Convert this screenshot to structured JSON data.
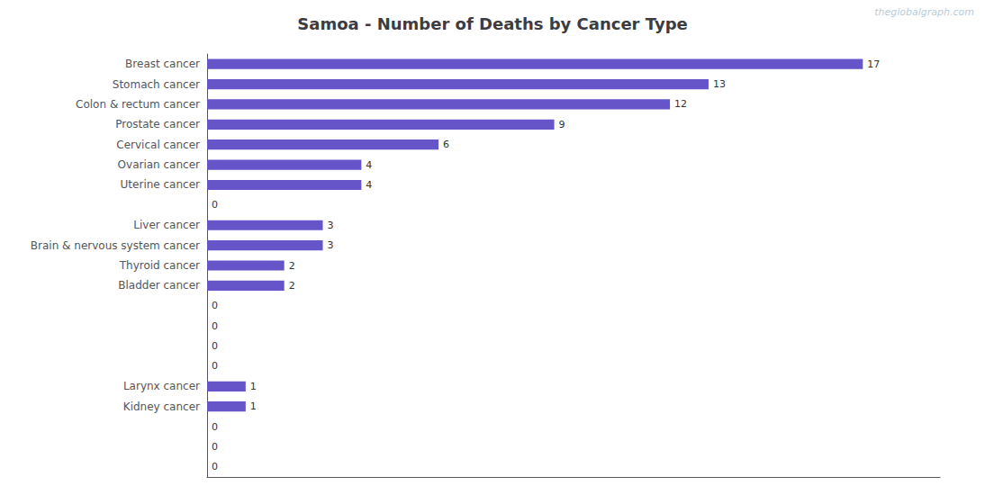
{
  "chart_data": {
    "type": "bar",
    "orientation": "horizontal",
    "title": "Samoa - Number of Deaths by Cancer Type",
    "annotations": [
      "theglobalgraph.com"
    ],
    "categories": [
      "Breast cancer",
      "Stomach cancer",
      "Colon & rectum cancer",
      "Prostate cancer",
      "Cervical cancer",
      "Ovarian cancer",
      "Uterine cancer",
      null,
      "Liver cancer",
      "Brain & nervous system cancer",
      "Thyroid cancer",
      "Bladder cancer",
      null,
      null,
      null,
      null,
      "Larynx cancer",
      "Kidney cancer",
      null,
      null,
      null
    ],
    "values": [
      17,
      13,
      12,
      9,
      6,
      4,
      4,
      0,
      3,
      3,
      2,
      2,
      0,
      0,
      0,
      0,
      1,
      1,
      0,
      0,
      0
    ],
    "color": "#6655c8",
    "xlim": [
      0,
      19
    ],
    "tick_labels": "y",
    "data_labels": true,
    "grid": false
  }
}
